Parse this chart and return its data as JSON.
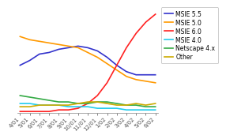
{
  "x_labels": [
    "4/01",
    "5/01",
    "6/01",
    "7/01",
    "8/01",
    "9/01",
    "10/01",
    "11/01",
    "12/01",
    "1/02",
    "2/02",
    "3/02",
    "4/02",
    "5/02",
    "6/02"
  ],
  "series": {
    "MSIE 5.5": {
      "color": "#3333cc",
      "data": [
        30,
        33,
        37,
        38,
        40,
        41,
        42,
        41,
        39,
        35,
        30,
        26,
        24,
        24,
        24
      ]
    },
    "MSIE 5.0": {
      "color": "#ff9900",
      "data": [
        48,
        46,
        45,
        44,
        43,
        42,
        41,
        38,
        35,
        31,
        27,
        23,
        21,
        20,
        19
      ]
    },
    "MSIE 6.0": {
      "color": "#ff2222",
      "data": [
        1,
        1,
        1,
        1,
        2,
        2,
        3,
        6,
        11,
        19,
        30,
        41,
        50,
        57,
        62
      ]
    },
    "MSIE 4.0": {
      "color": "#22ccee",
      "data": [
        6,
        6,
        5,
        5,
        5,
        4,
        4,
        4,
        3,
        3,
        3,
        2,
        2,
        2,
        2
      ]
    },
    "Netscape 4.x": {
      "color": "#33aa44",
      "data": [
        11,
        10,
        9,
        8,
        7,
        7,
        6,
        6,
        7,
        7,
        6,
        5,
        5,
        4,
        4
      ]
    },
    "Other": {
      "color": "#ccaa00",
      "data": [
        4,
        4,
        5,
        5,
        5,
        5,
        6,
        7,
        7,
        6,
        5,
        5,
        6,
        5,
        6
      ]
    }
  },
  "ylim": [
    0,
    65
  ],
  "background_color": "#ffffff",
  "legend_fontsize": 5.5,
  "tick_fontsize": 5.0,
  "linewidth": 1.2
}
